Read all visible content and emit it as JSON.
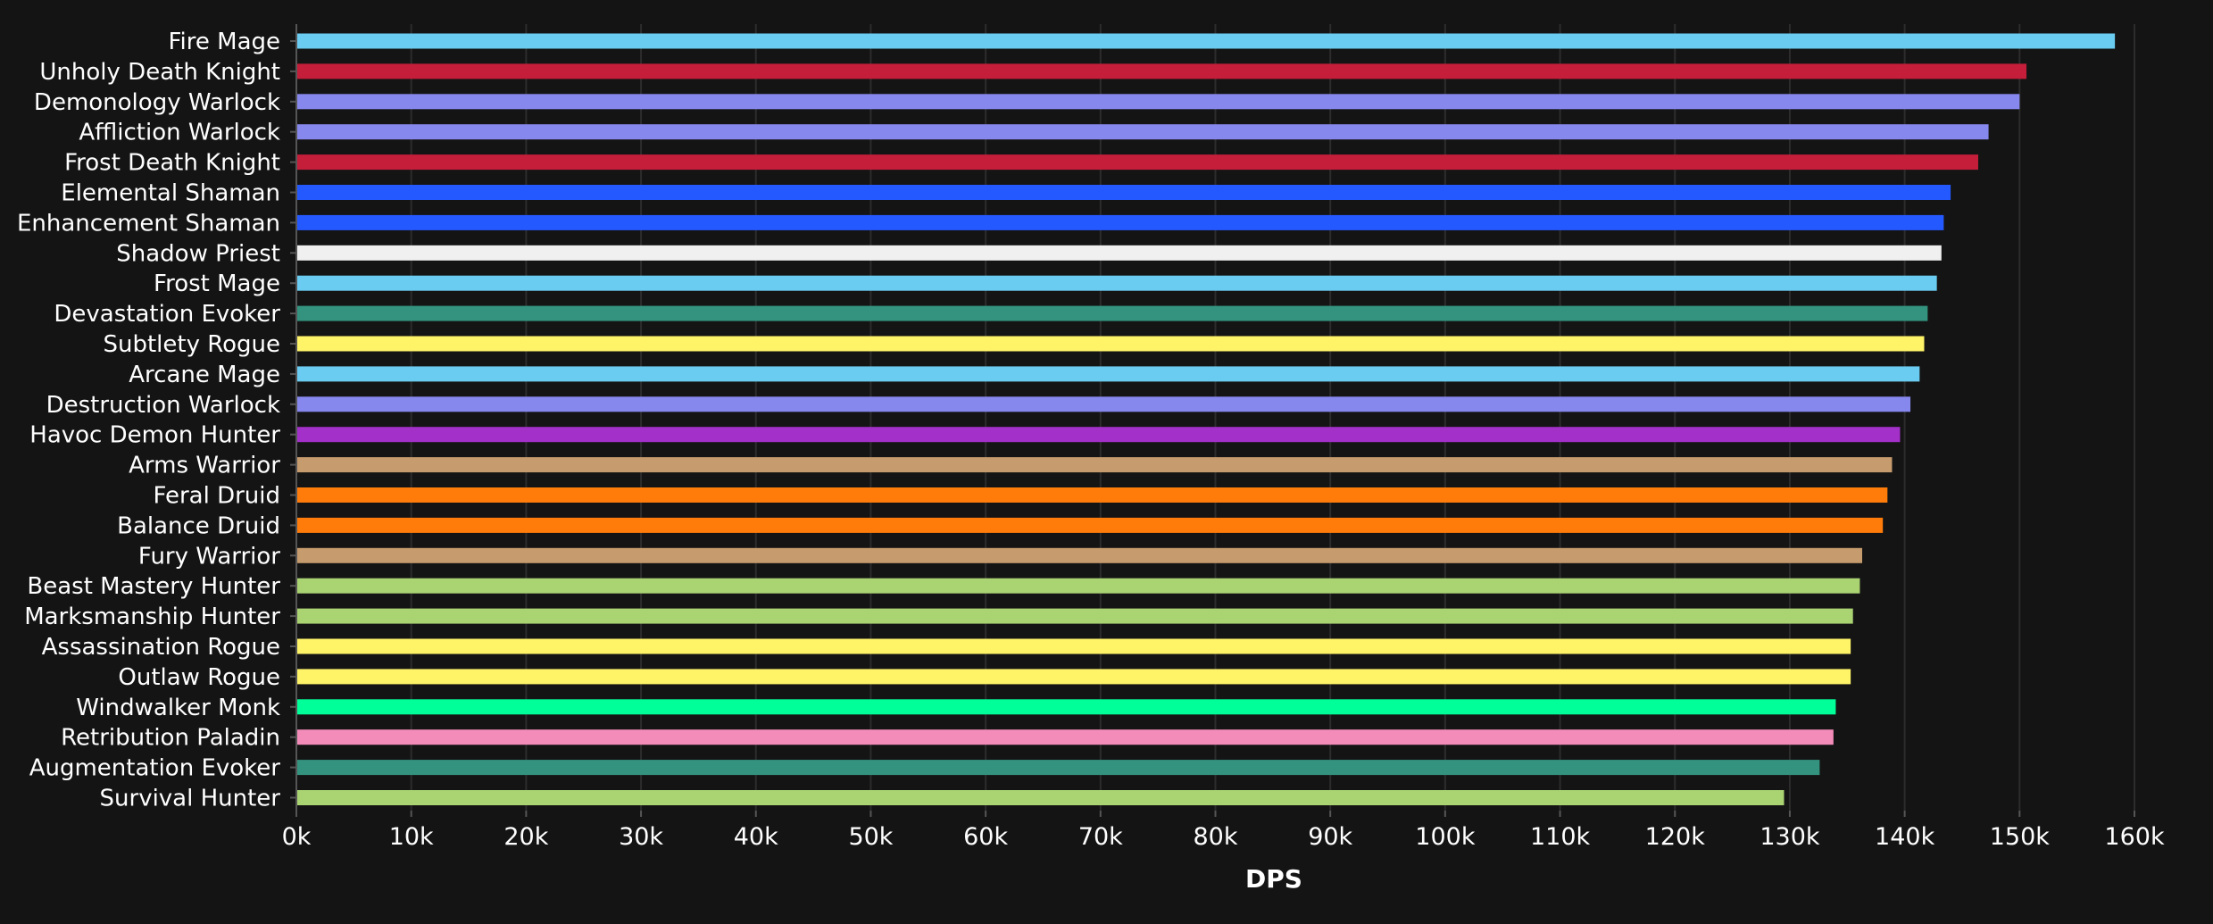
{
  "chart_data": {
    "type": "bar",
    "orientation": "horizontal",
    "title": "",
    "xlabel": "DPS",
    "ylabel": "",
    "xlim": [
      0,
      160000
    ],
    "x_ticks": [
      0,
      10000,
      20000,
      30000,
      40000,
      50000,
      60000,
      70000,
      80000,
      90000,
      100000,
      110000,
      120000,
      130000,
      140000,
      150000,
      160000
    ],
    "x_tick_labels": [
      "0k",
      "10k",
      "20k",
      "30k",
      "40k",
      "50k",
      "60k",
      "70k",
      "80k",
      "90k",
      "100k",
      "110k",
      "120k",
      "130k",
      "140k",
      "150k",
      "160k"
    ],
    "grid": true,
    "legend": "none",
    "background_color": "#141414",
    "grid_color": "#2c2c2c",
    "text_color": "#ffffff",
    "categories": [
      "Fire Mage",
      "Unholy Death Knight",
      "Demonology Warlock",
      "Affliction Warlock",
      "Frost Death Knight",
      "Elemental Shaman",
      "Enhancement Shaman",
      "Shadow Priest",
      "Frost Mage",
      "Devastation Evoker",
      "Subtlety Rogue",
      "Arcane Mage",
      "Destruction Warlock",
      "Havoc Demon Hunter",
      "Arms Warrior",
      "Feral Druid",
      "Balance Druid",
      "Fury Warrior",
      "Beast Mastery Hunter",
      "Marksmanship Hunter",
      "Assassination Rogue",
      "Outlaw Rogue",
      "Windwalker Monk",
      "Retribution Paladin",
      "Augmentation Evoker",
      "Survival Hunter"
    ],
    "values": [
      158300,
      150600,
      150000,
      147300,
      146400,
      144000,
      143400,
      143200,
      142800,
      142000,
      141700,
      141300,
      140500,
      139600,
      138900,
      138500,
      138100,
      136300,
      136100,
      135500,
      135300,
      135300,
      134000,
      133800,
      132600,
      129500
    ],
    "colors": [
      "#69ccf0",
      "#c41e3a",
      "#8788ee",
      "#8788ee",
      "#c41e3a",
      "#2459ff",
      "#2459ff",
      "#f0f0f0",
      "#69ccf0",
      "#33937f",
      "#fff468",
      "#69ccf0",
      "#8788ee",
      "#a330c9",
      "#c69b6d",
      "#ff7c0a",
      "#ff7c0a",
      "#c69b6d",
      "#aad372",
      "#aad372",
      "#fff468",
      "#fff468",
      "#00ff98",
      "#f48cba",
      "#33937f",
      "#aad372"
    ]
  }
}
